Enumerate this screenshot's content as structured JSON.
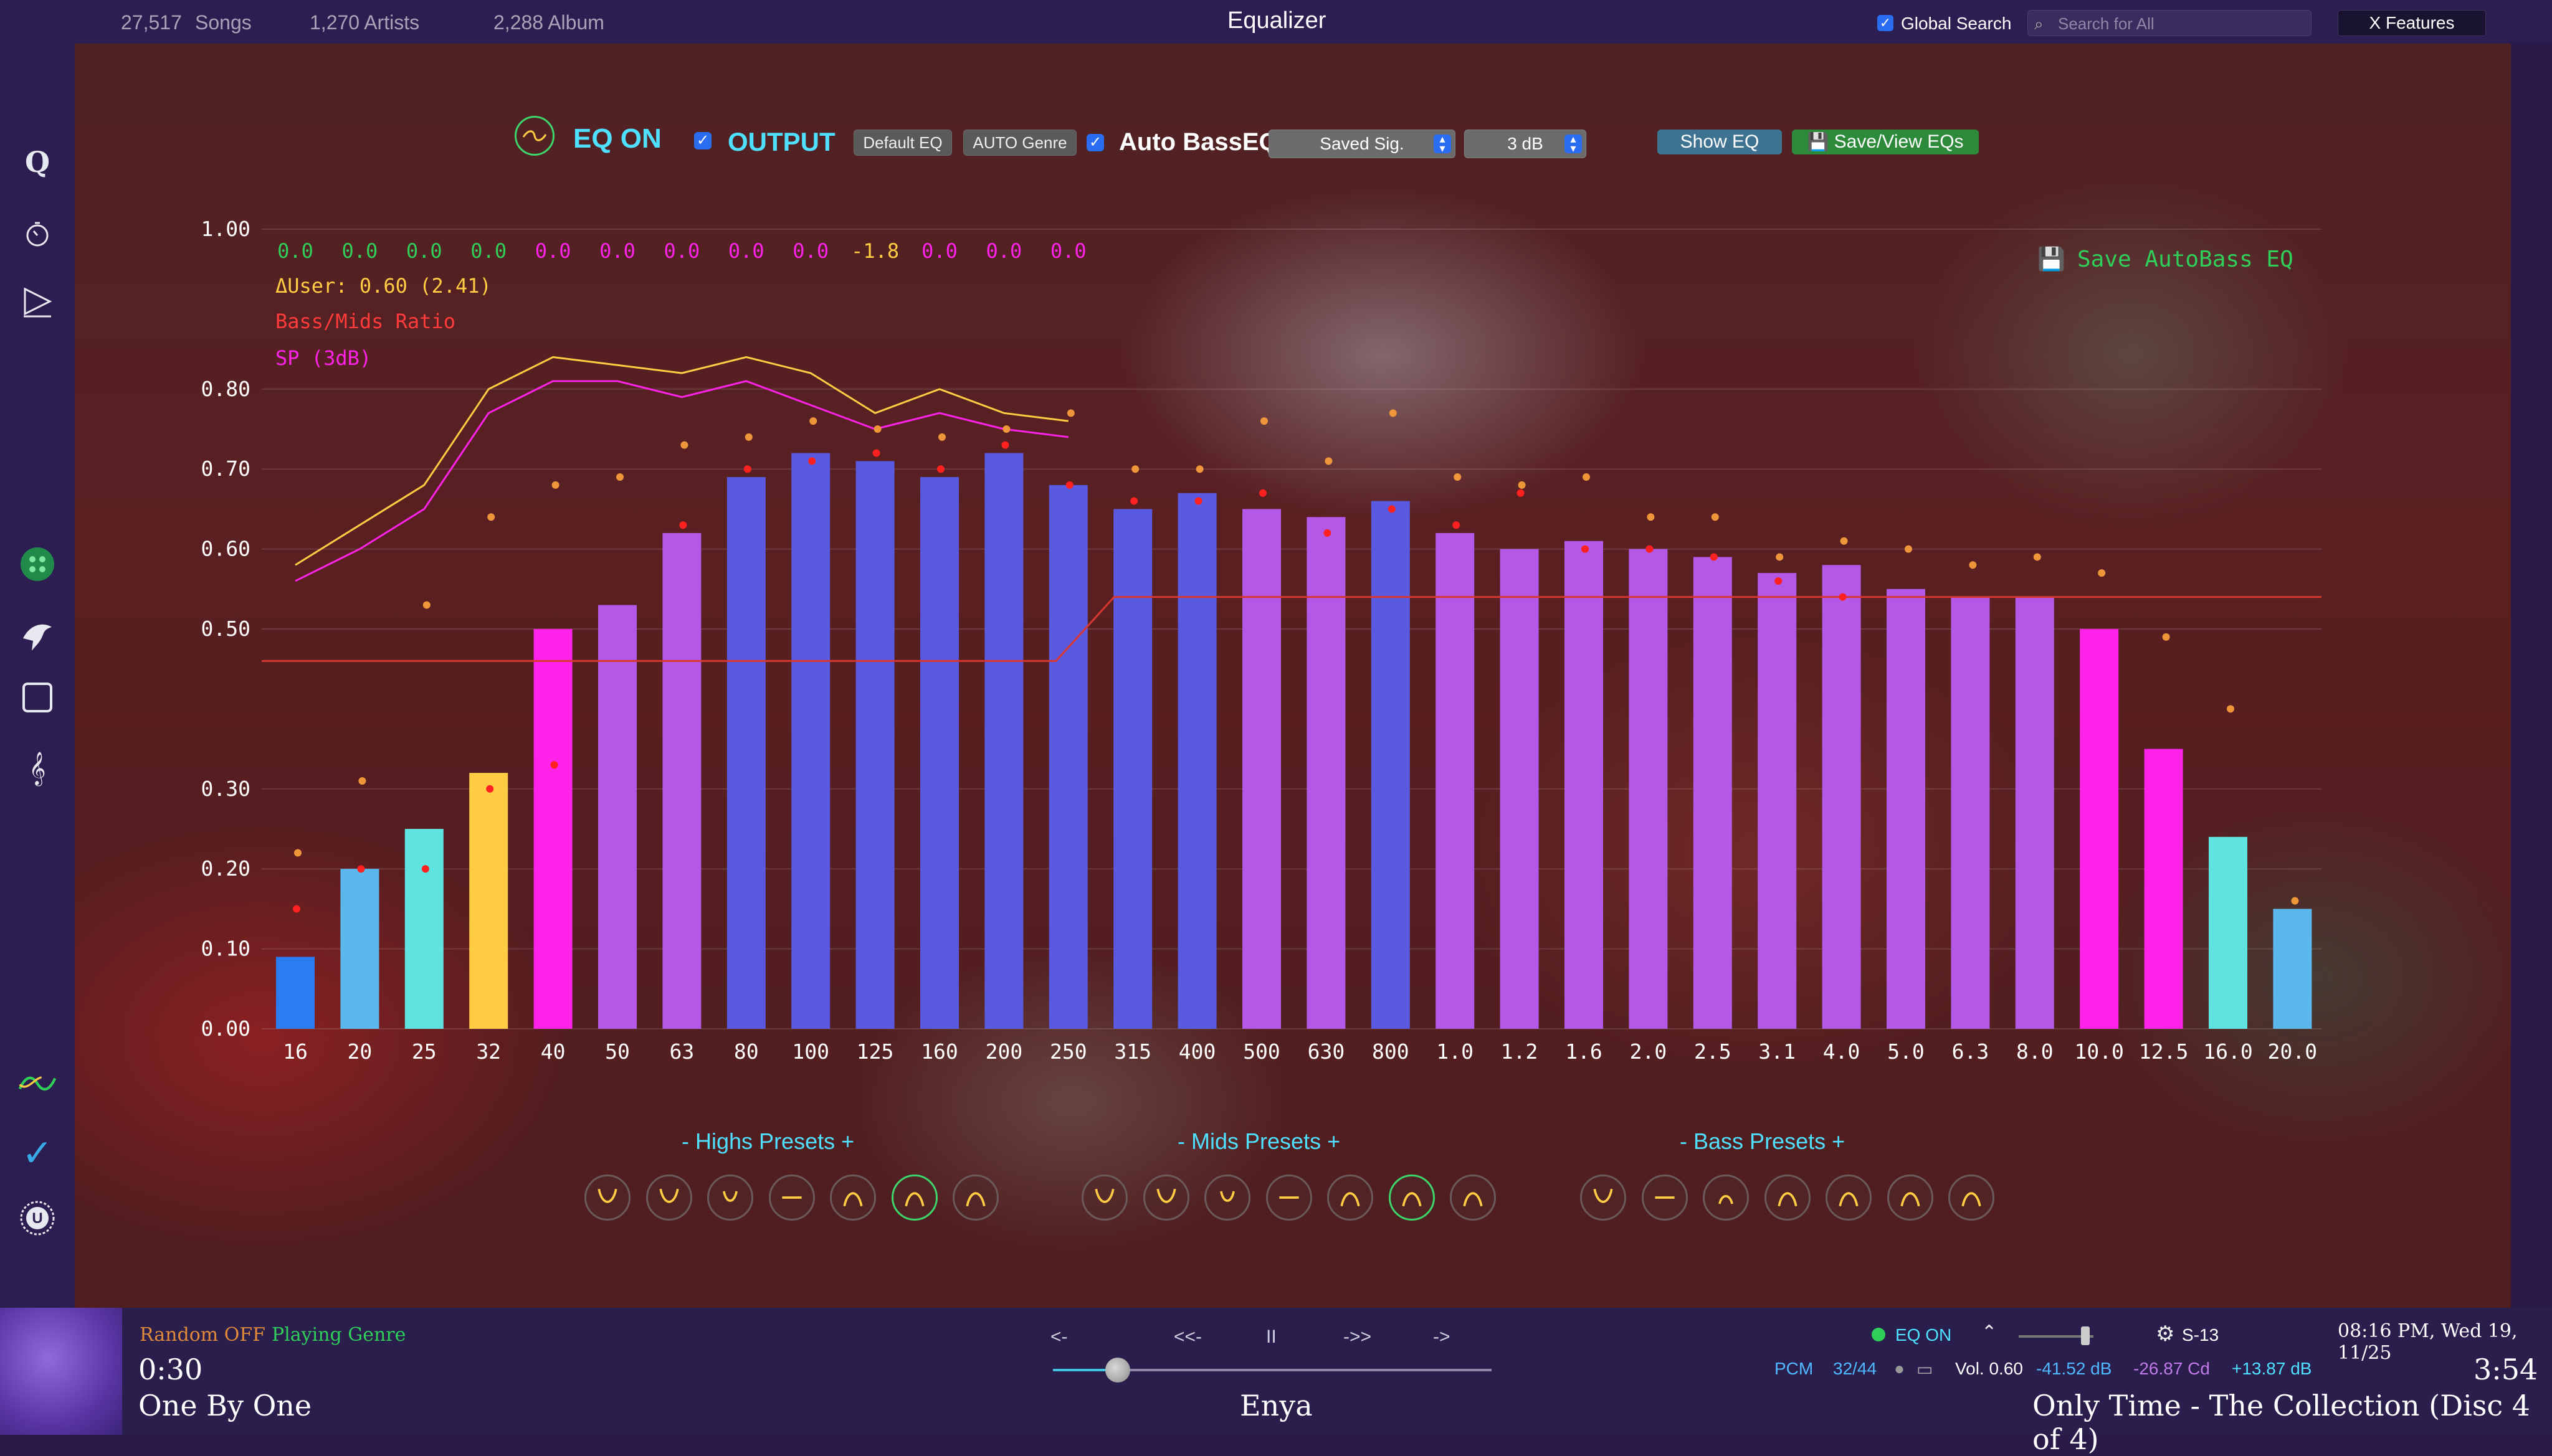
{
  "topbar": {
    "songs_count": "27,517",
    "songs_label": "Songs",
    "artists": "1,270 Artists",
    "albums": "2,288 Album",
    "title": "Equalizer",
    "global_search_label": "Global Search",
    "search_placeholder": "Search for All",
    "x_features": "X Features"
  },
  "sidebar": {
    "items": [
      "q-icon",
      "timer-icon",
      "play-queue-icon",
      "genre-dots-icon",
      "bird-icon",
      "frame-icon",
      "treble-clef-icon",
      "eq-wave-icon",
      "checkmark-icon",
      "u-info-icon"
    ]
  },
  "toolbar": {
    "eq_on": "EQ ON",
    "output": "OUTPUT",
    "default_eq": "Default EQ",
    "auto_genre": "AUTO Genre",
    "auto_bass": "Auto BassEQ",
    "saved_sig": "Saved Sig.",
    "db": "3 dB",
    "show_eq": "Show EQ",
    "save_view": "Save/View EQs"
  },
  "overlay": {
    "values": [
      "0.0",
      "0.0",
      "0.0",
      "0.0",
      "0.0",
      "0.0",
      "0.0",
      "0.0",
      "0.0",
      "-1.8",
      "0.0",
      "0.0",
      "0.0"
    ],
    "delta_user": "ΔUser: 0.60 (2.41)",
    "ratio": "Bass/Mids Ratio",
    "sp": "SP (3dB)",
    "save_autobass": "Save AutoBass EQ"
  },
  "colors": {
    "blue": "#2b7cf0",
    "light_blue": "#5ab8ec",
    "cyan": "#5ee3e0",
    "yellow": "#ffcc44",
    "magenta": "#ff22e8",
    "violet": "#b458e8",
    "indigo": "#5a5ae0"
  },
  "chart_data": {
    "type": "bar",
    "categories": [
      "16",
      "20",
      "25",
      "32",
      "40",
      "50",
      "63",
      "80",
      "100",
      "125",
      "160",
      "200",
      "250",
      "315",
      "400",
      "500",
      "630",
      "800",
      "1.0",
      "1.2",
      "1.6",
      "2.0",
      "2.5",
      "3.1",
      "4.0",
      "5.0",
      "6.3",
      "8.0",
      "10.0",
      "12.5",
      "16.0",
      "20.0"
    ],
    "values": [
      0.09,
      0.2,
      0.25,
      0.32,
      0.5,
      0.53,
      0.62,
      0.69,
      0.72,
      0.71,
      0.69,
      0.72,
      0.68,
      0.65,
      0.67,
      0.65,
      0.64,
      0.66,
      0.62,
      0.6,
      0.61,
      0.6,
      0.59,
      0.57,
      0.58,
      0.55,
      0.54,
      0.54,
      0.5,
      0.35,
      0.24,
      0.15
    ],
    "bar_colors": [
      "blue",
      "light_blue",
      "cyan",
      "yellow",
      "magenta",
      "violet",
      "violet",
      "indigo",
      "indigo",
      "indigo",
      "indigo",
      "indigo",
      "indigo",
      "indigo",
      "indigo",
      "violet",
      "violet",
      "indigo",
      "violet",
      "violet",
      "violet",
      "violet",
      "violet",
      "violet",
      "violet",
      "violet",
      "violet",
      "violet",
      "magenta",
      "magenta",
      "cyan",
      "light_blue"
    ],
    "orange_points": [
      0.22,
      0.31,
      0.53,
      0.64,
      0.68,
      0.69,
      0.73,
      0.74,
      0.76,
      0.75,
      0.74,
      0.75,
      0.77,
      0.7,
      0.7,
      0.76,
      0.71,
      0.77,
      0.69,
      0.68,
      0.69,
      0.64,
      0.64,
      0.59,
      0.61,
      0.6,
      0.58,
      0.59,
      0.57,
      0.49,
      0.4,
      0.16
    ],
    "red_points": [
      0.15,
      0.2,
      0.2,
      0.3,
      0.33,
      null,
      0.63,
      0.7,
      0.71,
      0.72,
      0.7,
      0.73,
      0.68,
      0.66,
      0.66,
      0.67,
      0.62,
      0.65,
      0.63,
      0.67,
      0.6,
      0.6,
      0.59,
      0.56,
      0.54,
      null,
      null,
      null,
      null,
      null,
      null,
      null
    ],
    "yellow_line": [
      0.58,
      0.63,
      0.68,
      0.8,
      0.84,
      0.83,
      0.82,
      0.84,
      0.82,
      0.77,
      0.8,
      0.77,
      0.76
    ],
    "magenta_line": [
      0.56,
      0.6,
      0.65,
      0.77,
      0.81,
      0.81,
      0.79,
      0.81,
      0.78,
      0.75,
      0.77,
      0.75,
      0.74
    ],
    "ratio_line": {
      "low": 0.46,
      "high": 0.54
    },
    "ylim": [
      0,
      1.0
    ],
    "yticks": [
      "0.00",
      "0.10",
      "0.20",
      "0.30",
      "0.50",
      "0.60",
      "0.70",
      "0.80",
      "1.00"
    ]
  },
  "presets": {
    "highs": "Highs Presets",
    "mids": "Mids Presets",
    "bass": "Bass Presets",
    "minus": "-",
    "plus": "+"
  },
  "player": {
    "random": "Random OFF",
    "genre": "Playing Genre",
    "elapsed": "0:30",
    "song": "One By One",
    "prev": "<-",
    "rewind": "<<-",
    "pause": "II",
    "forward": "->>",
    "next": "->",
    "artist": "Enya",
    "eq_on": "EQ ON",
    "setting": "S-13",
    "datetime": "08:16 PM, Wed 19, 11/25",
    "pcm": "PCM",
    "rate": "32/44",
    "vol": "Vol. 0.60",
    "db1": "-41.52 dB",
    "db2": "-26.87 Cd",
    "db3": "+13.87 dB",
    "duration": "3:54",
    "album": "Only Time - The Collection (Disc 4 of 4)"
  }
}
